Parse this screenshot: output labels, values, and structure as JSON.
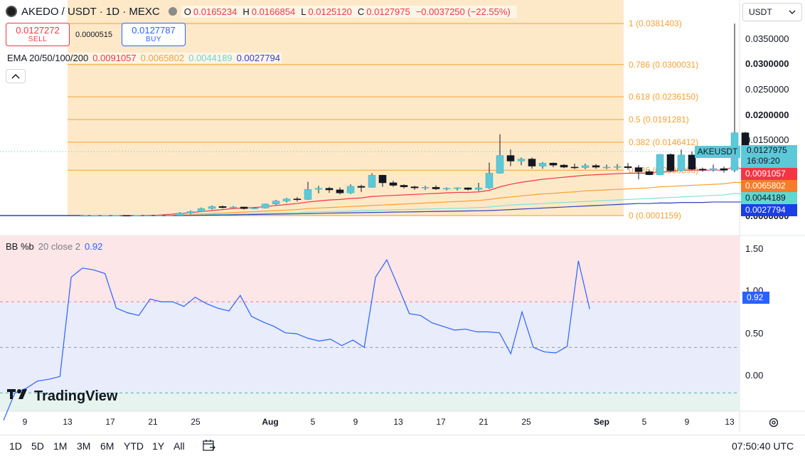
{
  "header": {
    "symbol": "AKEDO / USDT · 1D · MEXC",
    "ohlc": [
      {
        "k": "O",
        "v": "0.0165234"
      },
      {
        "k": "H",
        "v": "0.0166854"
      },
      {
        "k": "L",
        "v": "0.0125120"
      },
      {
        "k": "C",
        "v": "0.0127975"
      }
    ],
    "change": "−0.0037250 (−22.55%)"
  },
  "trade": {
    "sell_price": "0.0127272",
    "sell_label": "SELL",
    "spread": "0.0000515",
    "buy_price": "0.0127787",
    "buy_label": "BUY"
  },
  "ema": {
    "label": "EMA 20/50/100/200",
    "values": [
      "0.0091057",
      "0.0065802",
      "0.0044189",
      "0.0027794"
    ],
    "colors": [
      "#f23645",
      "#f7a035",
      "#7fe3dc",
      "#2f3fc6"
    ]
  },
  "currency": "USDT",
  "price_axis": [
    "0.0350000",
    "0.0300000",
    "0.0250000",
    "0.0200000",
    "0.0150000",
    "0.0000000"
  ],
  "fib": [
    {
      "ratio": "1 (0.0381403)"
    },
    {
      "ratio": "0.786 (0.0300031)"
    },
    {
      "ratio": "0.618 (0.0236150)"
    },
    {
      "ratio": "0.5 (0.0191281)"
    },
    {
      "ratio": "0.382 (0.0146412)"
    },
    {
      "ratio": "0.236 (0.0090896)"
    },
    {
      "ratio": "0 (0.0001159)"
    }
  ],
  "price_tags": {
    "symbol": "AKEUSDT",
    "last": "0.0127975",
    "countdown": "16:09:20",
    "ema20": "0.0091057",
    "ema50": "0.0065802",
    "ema100": "0.0044189",
    "ema200": "0.0027794"
  },
  "bb": {
    "label": "BB %b",
    "params": "20 close 2",
    "value": "0.92",
    "axis": [
      "1.50",
      "1.00",
      "0.50",
      "0.00"
    ]
  },
  "x_axis": [
    "9",
    "13",
    "17",
    "21",
    "25",
    "Aug",
    "5",
    "9",
    "13",
    "17",
    "21",
    "25",
    "Sep",
    "5",
    "9",
    "13"
  ],
  "timeframes": [
    "1D",
    "5D",
    "1M",
    "3M",
    "6M",
    "YTD",
    "1Y",
    "All"
  ],
  "clock": "07:50:40 UTC",
  "logo_text": "TradingView",
  "chart_data": {
    "type": "candlestick",
    "candles": [
      {
        "o": 0.00011,
        "h": 0.00013,
        "l": 0.0001,
        "c": 0.00012
      },
      {
        "o": 0.00012,
        "h": 0.00014,
        "l": 0.00011,
        "c": 0.00013
      },
      {
        "o": 0.00013,
        "h": 0.00015,
        "l": 0.00012,
        "c": 0.00014
      },
      {
        "o": 0.00014,
        "h": 0.00016,
        "l": 0.00013,
        "c": 0.00015
      },
      {
        "o": 0.00015,
        "h": 0.00016,
        "l": 0.00013,
        "c": 0.00014
      },
      {
        "o": 0.00014,
        "h": 0.00015,
        "l": 0.00013,
        "c": 0.00015
      },
      {
        "o": 0.00015,
        "h": 0.00016,
        "l": 0.00014,
        "c": 0.00015
      },
      {
        "o": 0.00015,
        "h": 0.00016,
        "l": 0.00014,
        "c": 0.00016
      },
      {
        "o": 0.00016,
        "h": 0.00018,
        "l": 0.00015,
        "c": 0.00017
      },
      {
        "o": 0.00017,
        "h": 0.0008,
        "l": 0.00016,
        "c": 0.0006
      },
      {
        "o": 0.0006,
        "h": 0.0011,
        "l": 0.0004,
        "c": 0.0009
      },
      {
        "o": 0.0009,
        "h": 0.0017,
        "l": 0.0008,
        "c": 0.0015
      },
      {
        "o": 0.0015,
        "h": 0.0021,
        "l": 0.0013,
        "c": 0.0019
      },
      {
        "o": 0.0019,
        "h": 0.0021,
        "l": 0.0015,
        "c": 0.0017
      },
      {
        "o": 0.0017,
        "h": 0.002,
        "l": 0.0016,
        "c": 0.0018
      },
      {
        "o": 0.0018,
        "h": 0.0019,
        "l": 0.0013,
        "c": 0.0015
      },
      {
        "o": 0.0015,
        "h": 0.0018,
        "l": 0.0014,
        "c": 0.0016
      },
      {
        "o": 0.0016,
        "h": 0.0025,
        "l": 0.0015,
        "c": 0.0024
      },
      {
        "o": 0.0024,
        "h": 0.0032,
        "l": 0.0022,
        "c": 0.003
      },
      {
        "o": 0.003,
        "h": 0.0036,
        "l": 0.0027,
        "c": 0.0034
      },
      {
        "o": 0.0034,
        "h": 0.0038,
        "l": 0.0029,
        "c": 0.0033
      },
      {
        "o": 0.0033,
        "h": 0.0068,
        "l": 0.0032,
        "c": 0.0053
      },
      {
        "o": 0.0053,
        "h": 0.006,
        "l": 0.0045,
        "c": 0.0055
      },
      {
        "o": 0.0055,
        "h": 0.0058,
        "l": 0.0046,
        "c": 0.0052
      },
      {
        "o": 0.0052,
        "h": 0.0057,
        "l": 0.0043,
        "c": 0.0046
      },
      {
        "o": 0.0046,
        "h": 0.0063,
        "l": 0.0044,
        "c": 0.0059
      },
      {
        "o": 0.0059,
        "h": 0.0062,
        "l": 0.0048,
        "c": 0.0057
      },
      {
        "o": 0.0057,
        "h": 0.0085,
        "l": 0.0056,
        "c": 0.0081
      },
      {
        "o": 0.0081,
        "h": 0.0082,
        "l": 0.0058,
        "c": 0.0066
      },
      {
        "o": 0.0066,
        "h": 0.007,
        "l": 0.0058,
        "c": 0.0061
      },
      {
        "o": 0.0061,
        "h": 0.0063,
        "l": 0.0055,
        "c": 0.0058
      },
      {
        "o": 0.0058,
        "h": 0.006,
        "l": 0.0052,
        "c": 0.0056
      },
      {
        "o": 0.0056,
        "h": 0.006,
        "l": 0.0052,
        "c": 0.0057
      },
      {
        "o": 0.0057,
        "h": 0.0061,
        "l": 0.0052,
        "c": 0.0054
      },
      {
        "o": 0.0054,
        "h": 0.0057,
        "l": 0.0051,
        "c": 0.0055
      },
      {
        "o": 0.0055,
        "h": 0.0057,
        "l": 0.0051,
        "c": 0.0056
      },
      {
        "o": 0.0056,
        "h": 0.0057,
        "l": 0.0051,
        "c": 0.0053
      },
      {
        "o": 0.0053,
        "h": 0.0066,
        "l": 0.005,
        "c": 0.0056
      },
      {
        "o": 0.0056,
        "h": 0.0106,
        "l": 0.0054,
        "c": 0.0085
      },
      {
        "o": 0.0085,
        "h": 0.0162,
        "l": 0.0084,
        "c": 0.012
      },
      {
        "o": 0.012,
        "h": 0.0132,
        "l": 0.0099,
        "c": 0.0109
      },
      {
        "o": 0.0109,
        "h": 0.0116,
        "l": 0.0101,
        "c": 0.0113
      },
      {
        "o": 0.0113,
        "h": 0.0116,
        "l": 0.0094,
        "c": 0.0099
      },
      {
        "o": 0.0099,
        "h": 0.0107,
        "l": 0.0094,
        "c": 0.0105
      },
      {
        "o": 0.0105,
        "h": 0.0106,
        "l": 0.0097,
        "c": 0.0101
      },
      {
        "o": 0.0101,
        "h": 0.0103,
        "l": 0.0095,
        "c": 0.0097
      },
      {
        "o": 0.0097,
        "h": 0.0104,
        "l": 0.0093,
        "c": 0.0096
      },
      {
        "o": 0.0096,
        "h": 0.0104,
        "l": 0.0093,
        "c": 0.01
      },
      {
        "o": 0.01,
        "h": 0.0103,
        "l": 0.0094,
        "c": 0.0097
      },
      {
        "o": 0.0097,
        "h": 0.0102,
        "l": 0.0093,
        "c": 0.0097
      },
      {
        "o": 0.0097,
        "h": 0.0103,
        "l": 0.0092,
        "c": 0.0098
      },
      {
        "o": 0.0098,
        "h": 0.0105,
        "l": 0.0092,
        "c": 0.0096
      },
      {
        "o": 0.0096,
        "h": 0.0101,
        "l": 0.0073,
        "c": 0.0088
      },
      {
        "o": 0.0088,
        "h": 0.0092,
        "l": 0.0081,
        "c": 0.0082
      },
      {
        "o": 0.0082,
        "h": 0.0123,
        "l": 0.0081,
        "c": 0.0122
      },
      {
        "o": 0.0122,
        "h": 0.0124,
        "l": 0.0088,
        "c": 0.009
      },
      {
        "o": 0.009,
        "h": 0.0132,
        "l": 0.0089,
        "c": 0.0121
      },
      {
        "o": 0.0121,
        "h": 0.0128,
        "l": 0.0091,
        "c": 0.0093
      },
      {
        "o": 0.0093,
        "h": 0.0096,
        "l": 0.0088,
        "c": 0.0091
      },
      {
        "o": 0.0091,
        "h": 0.0102,
        "l": 0.0088,
        "c": 0.0094
      },
      {
        "o": 0.0094,
        "h": 0.0098,
        "l": 0.0086,
        "c": 0.0091
      },
      {
        "o": 0.0091,
        "h": 0.0381,
        "l": 0.0087,
        "c": 0.0165
      },
      {
        "o": 0.0165,
        "h": 0.0167,
        "l": 0.0125,
        "c": 0.0128
      }
    ],
    "ema": {
      "ema20": [
        0.0001,
        0.0001,
        0.0001,
        0.0001,
        0.0001,
        0.0001,
        0.00015,
        0.0002,
        0.00035,
        0.0005,
        0.0007,
        0.0009,
        0.0011,
        0.0013,
        0.0015,
        0.0016,
        0.0017,
        0.0019,
        0.0021,
        0.0023,
        0.0025,
        0.0028,
        0.003,
        0.0032,
        0.0033,
        0.0035,
        0.0036,
        0.0039,
        0.004,
        0.0041,
        0.0042,
        0.0043,
        0.0044,
        0.0045,
        0.0046,
        0.0047,
        0.0047,
        0.0048,
        0.0051,
        0.0058,
        0.0063,
        0.0067,
        0.007,
        0.0073,
        0.0075,
        0.0077,
        0.0079,
        0.0081,
        0.0082,
        0.0083,
        0.0084,
        0.0085,
        0.0085,
        0.0085,
        0.0088,
        0.0088,
        0.0091,
        0.0091,
        0.0091,
        0.0091,
        0.0091,
        0.0098,
        0.0091
      ],
      "ema50": [
        0.0001,
        0.0001,
        0.0001,
        0.0001,
        0.0001,
        0.0001,
        0.0001,
        0.00012,
        0.00015,
        0.00022,
        0.0003,
        0.0004,
        0.0005,
        0.0006,
        0.0007,
        0.0008,
        0.0009,
        0.001,
        0.0011,
        0.0012,
        0.0013,
        0.0015,
        0.0016,
        0.0017,
        0.0018,
        0.0019,
        0.002,
        0.0021,
        0.0022,
        0.0023,
        0.0024,
        0.0025,
        0.0026,
        0.0027,
        0.0028,
        0.0029,
        0.003,
        0.0031,
        0.0033,
        0.0036,
        0.0038,
        0.004,
        0.0042,
        0.0044,
        0.0045,
        0.0047,
        0.0048,
        0.005,
        0.0051,
        0.0052,
        0.0053,
        0.0054,
        0.0055,
        0.0056,
        0.0058,
        0.0059,
        0.006,
        0.0061,
        0.0062,
        0.0063,
        0.0064,
        0.0067,
        0.0066
      ],
      "ema100": [
        0.0001,
        0.0001,
        0.0001,
        0.0001,
        0.0001,
        0.0001,
        0.0001,
        0.0001,
        0.00012,
        0.00015,
        0.0002,
        0.00025,
        0.0003,
        0.00035,
        0.0004,
        0.00045,
        0.0005,
        0.00055,
        0.0006,
        0.00065,
        0.0007,
        0.0008,
        0.00085,
        0.0009,
        0.00095,
        0.001,
        0.0011,
        0.00115,
        0.0012,
        0.00125,
        0.0013,
        0.00135,
        0.0014,
        0.00145,
        0.0015,
        0.00155,
        0.0016,
        0.0017,
        0.0018,
        0.002,
        0.0022,
        0.0023,
        0.0024,
        0.0025,
        0.0026,
        0.0027,
        0.0028,
        0.0029,
        0.003,
        0.0031,
        0.0032,
        0.0033,
        0.0034,
        0.0035,
        0.0036,
        0.0037,
        0.0038,
        0.0039,
        0.004,
        0.0041,
        0.0042,
        0.0045,
        0.0044
      ],
      "ema200": [
        0.0001,
        0.0001,
        0.0001,
        0.0001,
        0.0001,
        0.0001,
        0.0001,
        0.0001,
        0.0001,
        0.00011,
        0.00013,
        0.00016,
        0.0002,
        0.00023,
        0.00026,
        0.0003,
        0.00033,
        0.00036,
        0.0004,
        0.00043,
        0.00046,
        0.0005,
        0.00055,
        0.0006,
        0.00063,
        0.00066,
        0.0007,
        0.00073,
        0.00076,
        0.0008,
        0.00083,
        0.00086,
        0.0009,
        0.00093,
        0.00096,
        0.001,
        0.00103,
        0.00106,
        0.0011,
        0.0012,
        0.0013,
        0.0014,
        0.0015,
        0.0016,
        0.0017,
        0.0018,
        0.0019,
        0.002,
        0.0021,
        0.0022,
        0.0023,
        0.0024,
        0.0025,
        0.0025,
        0.0026,
        0.0026,
        0.0027,
        0.0027,
        0.0027,
        0.0028,
        0.0028,
        0.0028,
        0.0028
      ]
    },
    "bb_percent_b": [
      -0.3,
      0.0,
      0.05,
      0.13,
      0.15,
      0.18,
      1.27,
      1.37,
      1.35,
      1.31,
      0.93,
      0.88,
      0.85,
      1.03,
      1.0,
      1.0,
      0.95,
      1.05,
      0.98,
      0.93,
      0.9,
      1.07,
      0.84,
      0.78,
      0.73,
      0.66,
      0.65,
      0.6,
      0.57,
      0.59,
      0.52,
      0.58,
      0.5,
      1.27,
      1.46,
      1.17,
      0.87,
      0.85,
      0.77,
      0.73,
      0.69,
      0.7,
      0.67,
      0.67,
      0.66,
      0.43,
      0.89,
      0.5,
      0.45,
      0.44,
      0.51,
      1.45,
      0.92
    ],
    "fib_levels": [
      0.0381403,
      0.0300031,
      0.023615,
      0.0191281,
      0.0146412,
      0.0090896,
      0.0001159
    ],
    "y_range": [
      0.0001159,
      0.0381403
    ],
    "bb_range": [
      -0.2,
      1.72
    ],
    "grid": false
  }
}
